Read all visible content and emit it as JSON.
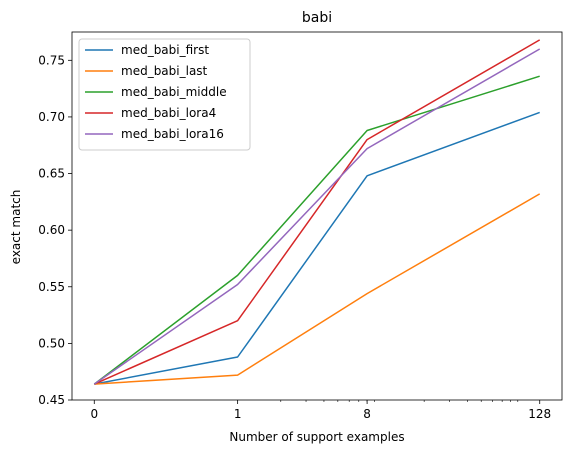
{
  "chart_data": {
    "type": "line",
    "title": "babi",
    "xlabel": "Number of support examples",
    "ylabel": "exact match",
    "x": [
      "0",
      "1",
      "8",
      "128"
    ],
    "xscale": "symlog",
    "ylim": [
      0.45,
      0.775
    ],
    "yticks": [
      "0.45",
      "0.50",
      "0.55",
      "0.60",
      "0.65",
      "0.70",
      "0.75"
    ],
    "grid": false,
    "legend_position": "top-left",
    "series": [
      {
        "name": "med_babi_first",
        "color": "#1f77b4",
        "values": [
          0.464,
          0.488,
          0.648,
          0.704
        ]
      },
      {
        "name": "med_babi_last",
        "color": "#ff7f0e",
        "values": [
          0.464,
          0.472,
          0.544,
          0.632
        ]
      },
      {
        "name": "med_babi_middle",
        "color": "#2ca02c",
        "values": [
          0.464,
          0.56,
          0.688,
          0.736
        ]
      },
      {
        "name": "med_babi_lora4",
        "color": "#d62728",
        "values": [
          0.464,
          0.52,
          0.68,
          0.768
        ]
      },
      {
        "name": "med_babi_lora16",
        "color": "#9467bd",
        "values": [
          0.464,
          0.552,
          0.672,
          0.76
        ]
      }
    ]
  }
}
